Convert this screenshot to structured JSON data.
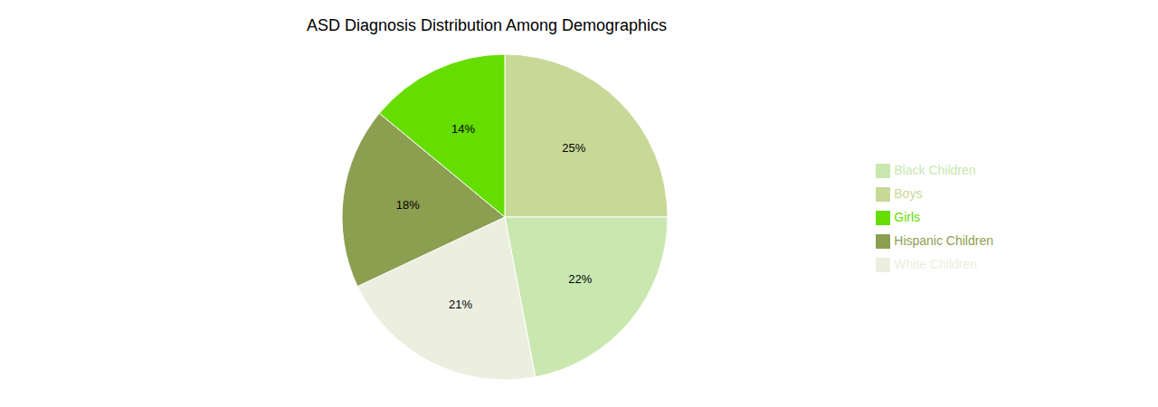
{
  "chart_data": {
    "type": "pie",
    "title": "ASD Diagnosis Distribution Among Demographics",
    "categories": [
      "Boys",
      "Black Children",
      "White Children",
      "Hispanic Children",
      "Girls"
    ],
    "values": [
      25,
      22,
      21,
      18,
      14
    ],
    "value_labels": [
      "25%",
      "22%",
      "21%",
      "18%",
      "14%"
    ],
    "data_labels": true,
    "colors": [
      "#c8d896",
      "#c8e8b0",
      "#eceee0",
      "#8c9e50",
      "#66dd00"
    ],
    "legend": "right"
  }
}
